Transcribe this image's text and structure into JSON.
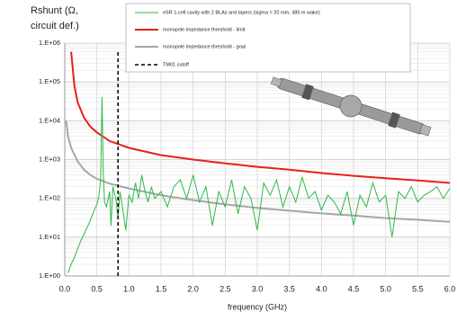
{
  "chart_data": {
    "type": "line",
    "ylabel": [
      "Rshunt (Ω,",
      "circuit def.)"
    ],
    "xlabel": "frequency (GHz)",
    "xlim": [
      0,
      6
    ],
    "ylim": [
      1,
      1000000
    ],
    "log_y": true,
    "grid": true,
    "xticks": [
      {
        "value": 0,
        "label": "0.0"
      },
      0.5,
      {
        "value": 1,
        "label": "1.0"
      },
      1.5,
      {
        "value": 2,
        "label": "2.0"
      },
      2.5,
      {
        "value": 3,
        "label": "3.0"
      },
      3.5,
      {
        "value": 4,
        "label": "4.0"
      },
      4.5,
      {
        "value": 5,
        "label": "5.0"
      },
      5.5,
      {
        "value": 6,
        "label": "6.0"
      }
    ],
    "yticks": [
      {
        "value": 1,
        "label": "1.E+00"
      },
      {
        "value": 10,
        "label": "1.E+01"
      },
      {
        "value": 100,
        "label": "1.E+02"
      },
      {
        "value": 1000,
        "label": "1.E+03"
      },
      {
        "value": 10000,
        "label": "1.E+04"
      },
      {
        "value": 100000,
        "label": "1.E+05"
      },
      {
        "value": 1000000,
        "label": "1.E+06"
      }
    ],
    "series": [
      {
        "name": "eSR 1-cell cavity with 2 BLAs and tapers (sigma = 20 mm, 385 m wake)",
        "color": "#2eb84a",
        "x": [
          0.05,
          0.1,
          0.15,
          0.2,
          0.25,
          0.3,
          0.35,
          0.4,
          0.45,
          0.5,
          0.53,
          0.56,
          0.58,
          0.6,
          0.62,
          0.65,
          0.7,
          0.72,
          0.75,
          0.8,
          0.83,
          0.86,
          0.9,
          0.95,
          1.0,
          1.05,
          1.1,
          1.15,
          1.2,
          1.25,
          1.3,
          1.35,
          1.4,
          1.5,
          1.6,
          1.7,
          1.8,
          1.9,
          2.0,
          2.1,
          2.2,
          2.3,
          2.4,
          2.5,
          2.6,
          2.7,
          2.8,
          2.9,
          3.0,
          3.1,
          3.2,
          3.3,
          3.4,
          3.5,
          3.6,
          3.7,
          3.8,
          3.9,
          4.0,
          4.1,
          4.2,
          4.3,
          4.4,
          4.5,
          4.6,
          4.7,
          4.8,
          4.9,
          5.0,
          5.1,
          5.2,
          5.3,
          5.4,
          5.5,
          5.6,
          5.7,
          5.8,
          5.9,
          6.0
        ],
        "values": [
          1.2,
          2,
          3,
          5,
          8,
          12,
          18,
          28,
          45,
          70,
          110,
          300,
          40000,
          500,
          80,
          60,
          150,
          20,
          200,
          90,
          30,
          150,
          60,
          15,
          120,
          80,
          250,
          100,
          400,
          150,
          80,
          200,
          100,
          150,
          60,
          200,
          300,
          100,
          400,
          80,
          200,
          20,
          150,
          60,
          300,
          40,
          200,
          100,
          15,
          250,
          120,
          300,
          60,
          200,
          80,
          350,
          100,
          150,
          50,
          120,
          80,
          40,
          150,
          20,
          120,
          60,
          250,
          80,
          120,
          10,
          150,
          100,
          200,
          80,
          120,
          150,
          200,
          100,
          180
        ]
      },
      {
        "name": "monopole impedance threshold - limit",
        "color": "#e8201a",
        "x": [
          0.1,
          0.15,
          0.2,
          0.3,
          0.4,
          0.5,
          0.7,
          1,
          1.5,
          2,
          2.5,
          3,
          3.5,
          4,
          4.5,
          5,
          5.5,
          6
        ],
        "values": [
          600000,
          80000,
          30000,
          12000,
          7000,
          5000,
          3000,
          2000,
          1300,
          1000,
          800,
          650,
          550,
          450,
          380,
          330,
          290,
          250
        ]
      },
      {
        "name": "monopole impedance threshold - goal",
        "color": "#a6a6a6",
        "x": [
          0.02,
          0.05,
          0.1,
          0.2,
          0.3,
          0.4,
          0.5,
          0.7,
          1,
          1.5,
          2,
          2.5,
          3,
          3.5,
          4,
          4.5,
          5,
          5.5,
          6
        ],
        "values": [
          10000,
          4000,
          2000,
          900,
          550,
          400,
          320,
          240,
          180,
          120,
          90,
          70,
          57,
          48,
          41,
          36,
          31,
          28,
          25
        ]
      }
    ],
    "vlines": [
      {
        "name": "TM01 cutoff",
        "x": 0.83,
        "color": "#000000"
      }
    ]
  }
}
